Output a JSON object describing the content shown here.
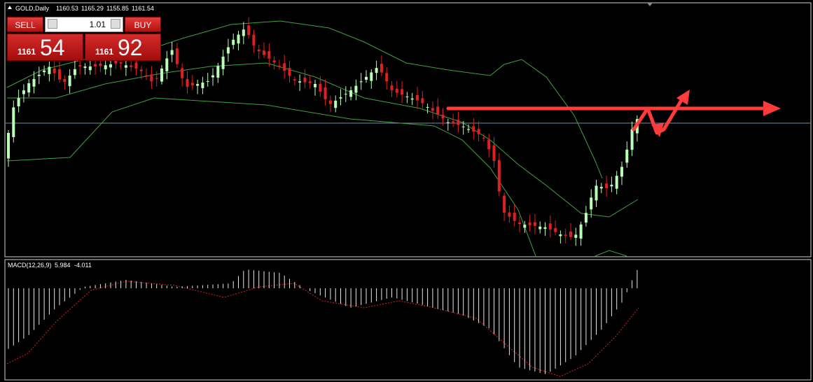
{
  "header": {
    "symbol": "GOLD,Daily",
    "open": "1160.53",
    "high": "1165.29",
    "low": "1155.85",
    "close": "1161.54"
  },
  "trade_panel": {
    "sell_label": "SELL",
    "buy_label": "BUY",
    "lot": "1.01",
    "bid": {
      "big": "1161",
      "pips": "54"
    },
    "ask": {
      "big": "1161",
      "pips": "92"
    }
  },
  "indicator": {
    "label": "MACD(12,26,9)",
    "main": "5.984",
    "signal": "-4.011"
  }
}
